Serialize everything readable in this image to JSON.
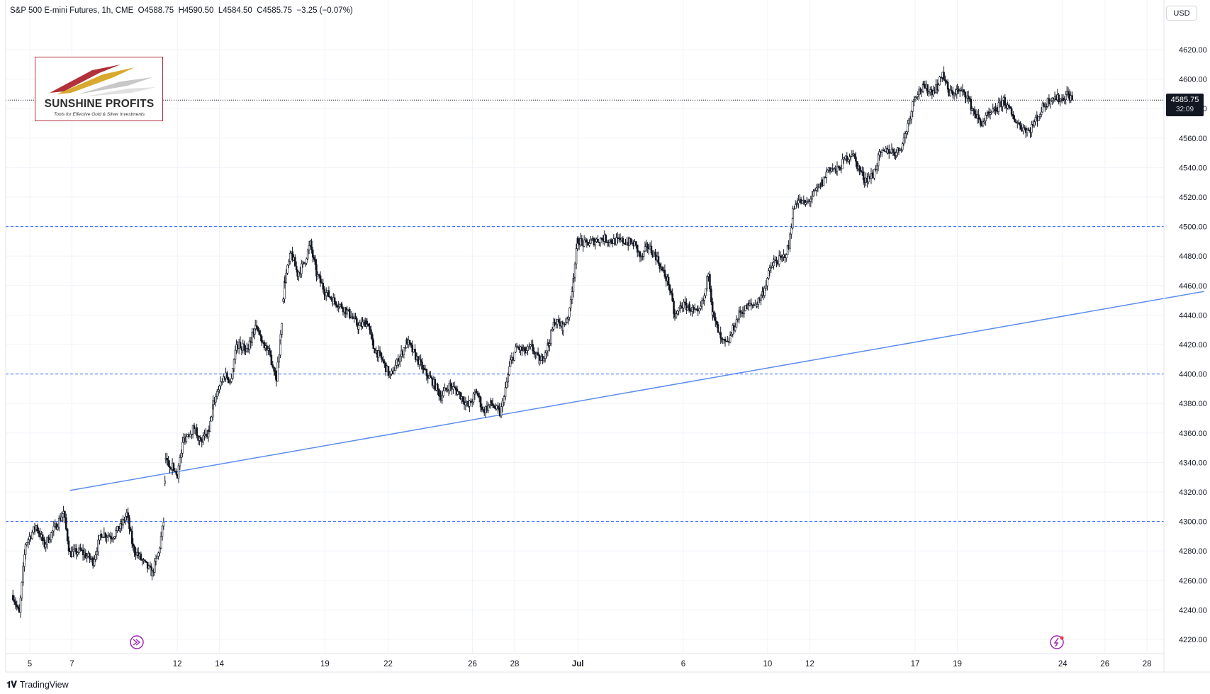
{
  "header": {
    "symbol": "S&P 500 E-mini Futures, 1h, CME",
    "open": "O4588.75",
    "high": "H4590.50",
    "low": "L4584.50",
    "close": "C4585.75",
    "change": "−3.25 (−0.07%)"
  },
  "currency": "USD",
  "last_price": {
    "value": "4585.75",
    "countdown": "32:09"
  },
  "logo": {
    "name": "SUNSHINE PROFITS",
    "tagline": "Tools for Effective Gold & Silver Investments"
  },
  "footer": {
    "brand": "TradingView"
  },
  "colors": {
    "candles": "#131722",
    "support_lines": "#2962ff",
    "trend_line": "#5b8def",
    "grid": "#f0f3fa",
    "event_icon": "#9c27b0"
  },
  "chart_data": {
    "type": "line",
    "timeframe": "1h",
    "y_tick_labels": [
      "4220.00",
      "4240.00",
      "4260.00",
      "4280.00",
      "4300.00",
      "4320.00",
      "4340.00",
      "4360.00",
      "4380.00",
      "4400.00",
      "4420.00",
      "4440.00",
      "4460.00",
      "4480.00",
      "4500.00",
      "4520.00",
      "4540.00",
      "4560.00",
      "4580.00",
      "4600.00",
      "4620.00"
    ],
    "ylim": [
      4212,
      4640
    ],
    "x_tick_labels": [
      {
        "label": "5",
        "day": 5
      },
      {
        "label": "7",
        "day": 7
      },
      {
        "label": "12",
        "day": 12
      },
      {
        "label": "14",
        "day": 14
      },
      {
        "label": "19",
        "day": 19
      },
      {
        "label": "22",
        "day": 22
      },
      {
        "label": "26",
        "day": 26
      },
      {
        "label": "28",
        "day": 28
      },
      {
        "label": "Jul",
        "day": 31
      },
      {
        "label": "6",
        "day": 36
      },
      {
        "label": "10",
        "day": 40
      },
      {
        "label": "12",
        "day": 42
      },
      {
        "label": "17",
        "day": 47
      },
      {
        "label": "19",
        "day": 49
      },
      {
        "label": "24",
        "day": 54
      },
      {
        "label": "26",
        "day": 56
      },
      {
        "label": "28",
        "day": 58
      }
    ],
    "xlim": [
      4.2,
      60.7
    ],
    "price_path": [
      [
        4.2,
        4250
      ],
      [
        4.5,
        4237
      ],
      [
        4.8,
        4285
      ],
      [
        5.3,
        4297
      ],
      [
        5.7,
        4284
      ],
      [
        6.2,
        4296
      ],
      [
        6.6,
        4306
      ],
      [
        6.9,
        4278
      ],
      [
        7.4,
        4280
      ],
      [
        8.0,
        4273
      ],
      [
        8.4,
        4292
      ],
      [
        8.9,
        4290
      ],
      [
        9.3,
        4296
      ],
      [
        9.6,
        4305
      ],
      [
        9.9,
        4282
      ],
      [
        10.4,
        4272
      ],
      [
        10.8,
        4265
      ],
      [
        11.1,
        4278
      ],
      [
        11.35,
        4300
      ],
      [
        11.45,
        4341
      ],
      [
        11.7,
        4338
      ],
      [
        12.0,
        4332
      ],
      [
        12.3,
        4356
      ],
      [
        12.8,
        4364
      ],
      [
        13.1,
        4354
      ],
      [
        13.5,
        4360
      ],
      [
        13.7,
        4380
      ],
      [
        14.0,
        4393
      ],
      [
        14.3,
        4400
      ],
      [
        14.5,
        4394
      ],
      [
        14.8,
        4420
      ],
      [
        15.3,
        4417
      ],
      [
        15.7,
        4432
      ],
      [
        16.0,
        4424
      ],
      [
        16.4,
        4412
      ],
      [
        16.7,
        4398
      ],
      [
        16.9,
        4425
      ],
      [
        17.1,
        4464
      ],
      [
        17.4,
        4482
      ],
      [
        17.7,
        4468
      ],
      [
        18.0,
        4475
      ],
      [
        18.3,
        4488
      ],
      [
        18.6,
        4468
      ],
      [
        19.0,
        4456
      ],
      [
        19.4,
        4450
      ],
      [
        19.8,
        4446
      ],
      [
        20.2,
        4440
      ],
      [
        20.6,
        4432
      ],
      [
        21.0,
        4436
      ],
      [
        21.3,
        4418
      ],
      [
        21.7,
        4410
      ],
      [
        22.1,
        4398
      ],
      [
        22.5,
        4410
      ],
      [
        22.9,
        4422
      ],
      [
        23.3,
        4412
      ],
      [
        23.7,
        4402
      ],
      [
        24.1,
        4395
      ],
      [
        24.5,
        4385
      ],
      [
        24.9,
        4392
      ],
      [
        25.3,
        4388
      ],
      [
        25.8,
        4378
      ],
      [
        26.2,
        4388
      ],
      [
        26.5,
        4375
      ],
      [
        26.9,
        4380
      ],
      [
        27.3,
        4373
      ],
      [
        27.5,
        4384
      ],
      [
        27.8,
        4408
      ],
      [
        28.1,
        4418
      ],
      [
        28.5,
        4415
      ],
      [
        28.8,
        4418
      ],
      [
        29.2,
        4408
      ],
      [
        29.6,
        4420
      ],
      [
        29.9,
        4436
      ],
      [
        30.3,
        4432
      ],
      [
        30.6,
        4442
      ],
      [
        30.8,
        4468
      ],
      [
        31.0,
        4491
      ],
      [
        31.3,
        4488
      ],
      [
        31.7,
        4490
      ],
      [
        32.2,
        4492
      ],
      [
        32.7,
        4490
      ],
      [
        33.2,
        4490
      ],
      [
        33.7,
        4488
      ],
      [
        34.0,
        4478
      ],
      [
        34.3,
        4487
      ],
      [
        34.7,
        4480
      ],
      [
        35.0,
        4470
      ],
      [
        35.3,
        4462
      ],
      [
        35.6,
        4438
      ],
      [
        35.9,
        4447
      ],
      [
        36.3,
        4445
      ],
      [
        36.7,
        4440
      ],
      [
        37.0,
        4452
      ],
      [
        37.2,
        4470
      ],
      [
        37.4,
        4440
      ],
      [
        37.8,
        4422
      ],
      [
        38.1,
        4420
      ],
      [
        38.4,
        4432
      ],
      [
        38.7,
        4442
      ],
      [
        39.1,
        4446
      ],
      [
        39.5,
        4448
      ],
      [
        39.8,
        4456
      ],
      [
        40.1,
        4470
      ],
      [
        40.3,
        4476
      ],
      [
        40.7,
        4478
      ],
      [
        41.0,
        4486
      ],
      [
        41.2,
        4510
      ],
      [
        41.4,
        4518
      ],
      [
        41.8,
        4515
      ],
      [
        42.2,
        4522
      ],
      [
        42.6,
        4530
      ],
      [
        42.9,
        4540
      ],
      [
        43.3,
        4538
      ],
      [
        43.7,
        4546
      ],
      [
        44.0,
        4550
      ],
      [
        44.3,
        4540
      ],
      [
        44.6,
        4532
      ],
      [
        45.0,
        4535
      ],
      [
        45.3,
        4548
      ],
      [
        45.7,
        4552
      ],
      [
        46.1,
        4550
      ],
      [
        46.4,
        4556
      ],
      [
        46.7,
        4572
      ],
      [
        47.0,
        4590
      ],
      [
        47.4,
        4594
      ],
      [
        47.8,
        4592
      ],
      [
        48.1,
        4596
      ],
      [
        48.3,
        4604
      ],
      [
        48.6,
        4590
      ],
      [
        49.0,
        4592
      ],
      [
        49.4,
        4590
      ],
      [
        49.7,
        4580
      ],
      [
        50.1,
        4570
      ],
      [
        50.5,
        4575
      ],
      [
        50.9,
        4580
      ],
      [
        51.2,
        4586
      ],
      [
        51.6,
        4575
      ],
      [
        52.0,
        4568
      ],
      [
        52.4,
        4565
      ],
      [
        52.8,
        4574
      ],
      [
        53.1,
        4582
      ],
      [
        53.5,
        4588
      ],
      [
        53.9,
        4586
      ],
      [
        54.2,
        4590
      ],
      [
        54.5,
        4585.75
      ]
    ],
    "horizontal_lines": [
      4300,
      4400,
      4500
    ],
    "trend_line": {
      "start": [
        6.9,
        4321
      ],
      "end": [
        60.7,
        4456
      ]
    },
    "last_price": 4585.75
  }
}
